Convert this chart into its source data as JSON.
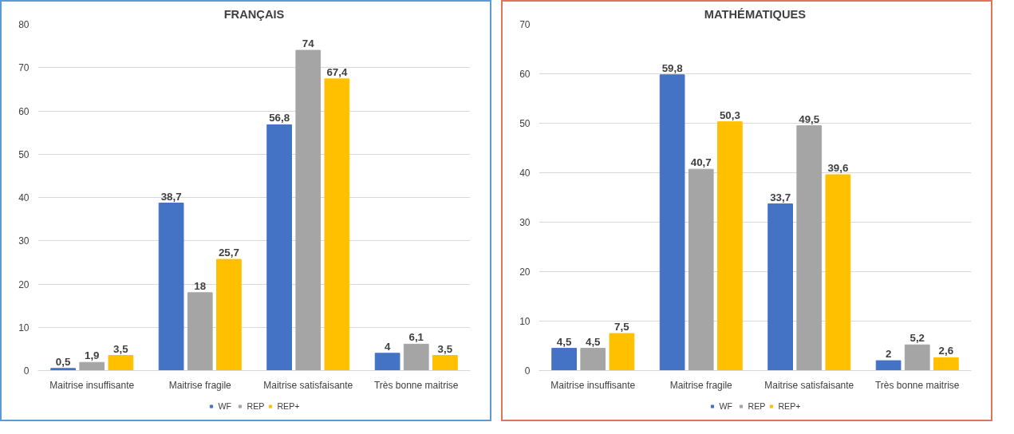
{
  "chart_data": [
    {
      "type": "bar",
      "title": "FRANÇAIS",
      "categories": [
        "Maitrise insuffisante",
        "Maitrise fragile",
        "Maitrise satisfaisante",
        "Très bonne maitrise"
      ],
      "series": [
        {
          "name": "WF",
          "color": "#4472c4",
          "values": [
            0.5,
            38.7,
            56.8,
            4
          ],
          "value_labels": [
            "0,5",
            "38,7",
            "56,8",
            "4"
          ]
        },
        {
          "name": "REP",
          "color": "#a5a5a5",
          "values": [
            1.9,
            18,
            74,
            6.1
          ],
          "value_labels": [
            "1,9",
            "18",
            "74",
            "6,1"
          ]
        },
        {
          "name": "REP+",
          "color": "#ffc000",
          "values": [
            3.5,
            25.7,
            67.4,
            3.5
          ],
          "value_labels": [
            "3,5",
            "25,7",
            "67,4",
            "3,5"
          ]
        }
      ],
      "ylim": [
        0,
        80
      ],
      "yticks": [
        0,
        10,
        20,
        30,
        40,
        50,
        60,
        70,
        80
      ],
      "grid": "y",
      "legend": "bottom"
    },
    {
      "type": "bar",
      "title": "MATHÉMATIQUES",
      "categories": [
        "Maitrise insuffisante",
        "Maitrise fragile",
        "Maitrise satisfaisante",
        "Très bonne maitrise"
      ],
      "series": [
        {
          "name": "WF",
          "color": "#4472c4",
          "values": [
            4.5,
            59.8,
            33.7,
            2
          ],
          "value_labels": [
            "4,5",
            "59,8",
            "33,7",
            "2"
          ]
        },
        {
          "name": "REP",
          "color": "#a5a5a5",
          "values": [
            4.5,
            40.7,
            49.5,
            5.2
          ],
          "value_labels": [
            "4,5",
            "40,7",
            "49,5",
            "5,2"
          ]
        },
        {
          "name": "REP+",
          "color": "#ffc000",
          "values": [
            7.5,
            50.3,
            39.6,
            2.6
          ],
          "value_labels": [
            "7,5",
            "50,3",
            "39,6",
            "2,6"
          ]
        }
      ],
      "ylim": [
        0,
        70
      ],
      "yticks": [
        0,
        10,
        20,
        30,
        40,
        50,
        60,
        70
      ],
      "grid": "y",
      "legend": "bottom"
    }
  ]
}
